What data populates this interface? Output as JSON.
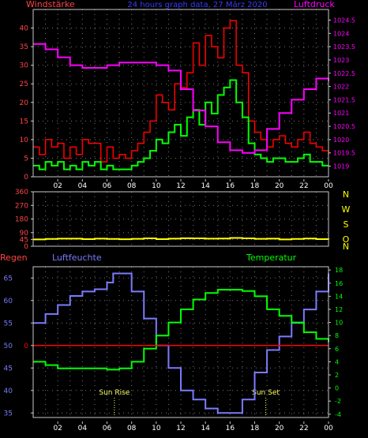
{
  "header": {
    "left_label": "Windstärke",
    "title": "24 hours graph data, 27 März 2020",
    "right_label": "Luftdruck"
  },
  "colors": {
    "background": "#000000",
    "axis": "#c8c8c8",
    "grid": "#777777",
    "hour_label": "#ffffff",
    "wind_gust": "#ff0000",
    "wind_speed": "#00ff00",
    "pressure": "#ff00ff",
    "direction": "#ffff00",
    "humidity": "#7b7bff",
    "temperature": "#00ff00",
    "rain": "#ff0000",
    "left_axis_label": "#ff4444",
    "right_axis_label": "#ff00ff",
    "bottom_right_label": "#ffff00",
    "direction_letters": "#ffff00",
    "humidity_ticks": "#7b7bff",
    "temperature_ticks": "#00ff00",
    "sun_markers": "#ffff66"
  },
  "x_axis": {
    "hours": [
      "02",
      "04",
      "06",
      "08",
      "10",
      "12",
      "14",
      "16",
      "18",
      "20",
      "22",
      "00"
    ]
  },
  "direction_labels": [
    "N",
    "W",
    "S",
    "O",
    "N"
  ],
  "bottom_header": {
    "rain_label": "Regen",
    "humidity_label": "Luftfeuchte",
    "temperature_label": "Temperatur"
  },
  "sun": {
    "rise_label": "Sun Rise",
    "rise_hour": 6.6,
    "set_label": "Sun Set",
    "set_hour": 18.9
  },
  "chart_data": [
    {
      "type": "line",
      "name": "wind_and_pressure",
      "x_range": [
        0,
        24
      ],
      "left_axis": {
        "ticks": [
          0,
          5,
          10,
          15,
          20,
          25,
          30,
          35,
          40
        ],
        "range": [
          0,
          45
        ]
      },
      "right_axis": {
        "ticks": [
          1019,
          1019.5,
          1020,
          1020.5,
          1021,
          1021.5,
          1022,
          1022.5,
          1023,
          1023.5,
          1024,
          1024.5
        ],
        "range": [
          1018.6,
          1024.9
        ]
      },
      "series": [
        {
          "key": "gust",
          "x": [
            0,
            0.5,
            1,
            1.5,
            2,
            2.5,
            3,
            3.5,
            4,
            4.5,
            5,
            5.5,
            6,
            6.5,
            7,
            7.5,
            8,
            8.5,
            9,
            9.5,
            10,
            10.5,
            11,
            11.5,
            12,
            12.5,
            13,
            13.5,
            14,
            14.5,
            15,
            15.5,
            16,
            16.5,
            17,
            17.5,
            18,
            18.5,
            19,
            19.5,
            20,
            20.5,
            21,
            21.5,
            22,
            22.5,
            23,
            23.5,
            24
          ],
          "values": [
            8,
            6,
            10,
            8,
            9,
            5,
            8,
            6,
            10,
            9,
            9,
            4,
            8,
            5,
            6,
            5,
            7,
            9,
            12,
            15,
            22,
            20,
            18,
            25,
            24,
            28,
            36,
            30,
            38,
            35,
            32,
            40,
            42,
            30,
            28,
            15,
            12,
            10,
            8,
            10,
            11,
            9,
            8,
            10,
            12,
            9,
            8,
            7,
            6
          ]
        },
        {
          "key": "speed",
          "x": [
            0,
            0.5,
            1,
            1.5,
            2,
            2.5,
            3,
            3.5,
            4,
            4.5,
            5,
            5.5,
            6,
            6.5,
            7,
            7.5,
            8,
            8.5,
            9,
            9.5,
            10,
            10.5,
            11,
            11.5,
            12,
            12.5,
            13,
            13.5,
            14,
            14.5,
            15,
            15.5,
            16,
            16.5,
            17,
            17.5,
            18,
            18.5,
            19,
            19.5,
            20,
            20.5,
            21,
            21.5,
            22,
            22.5,
            23,
            23.5,
            24
          ],
          "values": [
            3,
            2,
            4,
            3,
            4,
            2,
            3,
            2,
            4,
            3,
            4,
            2,
            3,
            2,
            2,
            2,
            3,
            4,
            5,
            7,
            10,
            9,
            12,
            14,
            11,
            16,
            18,
            14,
            20,
            17,
            22,
            24,
            26,
            20,
            16,
            9,
            6,
            5,
            4,
            5,
            5,
            4,
            4,
            5,
            6,
            4,
            4,
            3,
            3
          ]
        },
        {
          "key": "pressure",
          "x": [
            0,
            1,
            2,
            3,
            4,
            5,
            6,
            7,
            8,
            9,
            10,
            11,
            12,
            13,
            14,
            15,
            16,
            17,
            18,
            19,
            20,
            21,
            22,
            23,
            24
          ],
          "values": [
            1023.6,
            1023.4,
            1023.1,
            1022.8,
            1022.7,
            1022.7,
            1022.8,
            1022.9,
            1022.9,
            1022.9,
            1022.8,
            1022.6,
            1021.9,
            1021.1,
            1020.5,
            1019.9,
            1019.6,
            1019.5,
            1019.6,
            1020.4,
            1021.0,
            1021.5,
            1021.9,
            1022.3,
            1022.2
          ]
        }
      ]
    },
    {
      "type": "line",
      "name": "wind_direction",
      "x_range": [
        0,
        24
      ],
      "y_axis": {
        "ticks": [
          0,
          45,
          90,
          180,
          270,
          360
        ],
        "range": [
          0,
          360
        ]
      },
      "series": [
        {
          "key": "direction",
          "x": [
            0,
            1,
            2,
            3,
            4,
            5,
            6,
            7,
            8,
            9,
            10,
            11,
            12,
            13,
            14,
            15,
            16,
            17,
            18,
            19,
            20,
            21,
            22,
            23,
            24
          ],
          "values": [
            45,
            48,
            50,
            50,
            47,
            50,
            48,
            46,
            49,
            52,
            47,
            50,
            53,
            52,
            50,
            51,
            55,
            52,
            49,
            50,
            45,
            48,
            51,
            47,
            45
          ]
        }
      ]
    },
    {
      "type": "line",
      "name": "humidity_temperature",
      "x_range": [
        0,
        24
      ],
      "left_axis": {
        "ticks": [
          35,
          40,
          45,
          50,
          55,
          60,
          65
        ],
        "range": [
          34,
          67.5
        ]
      },
      "right_axis": {
        "ticks": [
          -4,
          -2,
          0,
          2,
          4,
          6,
          8,
          10,
          12,
          14,
          16,
          18
        ],
        "range": [
          -4.5,
          18.5
        ]
      },
      "series": [
        {
          "key": "humidity",
          "x": [
            0,
            1,
            2,
            3,
            4,
            5,
            6,
            6.5,
            7,
            8,
            9,
            10,
            11,
            12,
            13,
            14,
            15,
            16,
            17,
            18,
            19,
            20,
            21,
            22,
            23,
            24
          ],
          "values": [
            55,
            57,
            59,
            61,
            62,
            62.5,
            64,
            66,
            66,
            62,
            56,
            50,
            45,
            40,
            38,
            36,
            35,
            35,
            38,
            44,
            49,
            52,
            55,
            58,
            62,
            66
          ]
        },
        {
          "key": "temperature",
          "x": [
            0,
            1,
            2,
            3,
            4,
            5,
            6,
            7,
            8,
            9,
            10,
            11,
            12,
            13,
            14,
            15,
            16,
            17,
            18,
            19,
            20,
            21,
            22,
            23,
            24
          ],
          "values": [
            4,
            3.5,
            3,
            3,
            3,
            3,
            2.8,
            3,
            4,
            6,
            8,
            10,
            12,
            13.5,
            14.5,
            15,
            15,
            14.8,
            14,
            12,
            11,
            10,
            8.5,
            7.5,
            7
          ]
        },
        {
          "key": "rain",
          "x": [
            0,
            24
          ],
          "values": [
            0,
            0
          ]
        }
      ]
    }
  ]
}
